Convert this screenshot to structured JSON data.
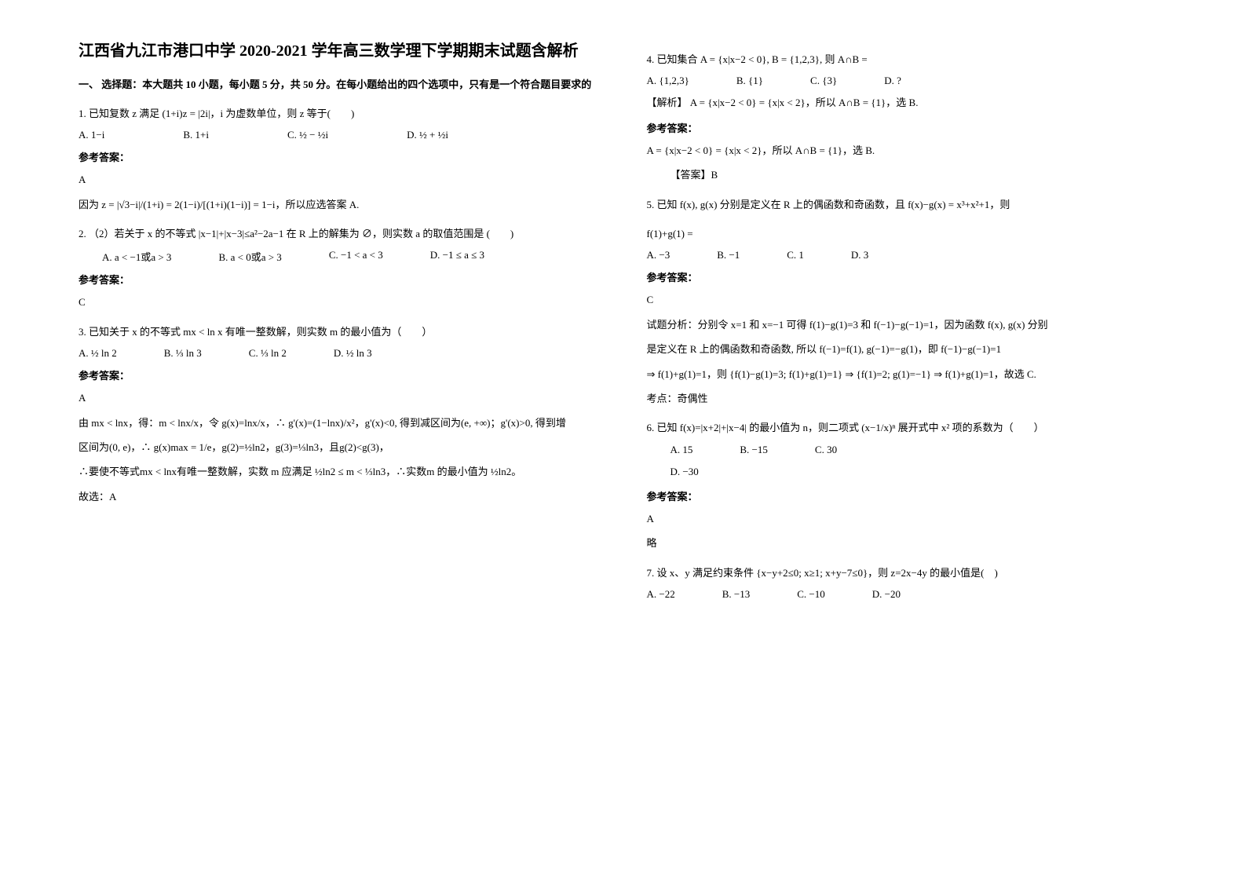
{
  "title": "江西省九江市港口中学 2020-2021 学年高三数学理下学期期末试题含解析",
  "section1_header": "一、 选择题：本大题共 10 小题，每小题 5 分，共 50 分。在每小题给出的四个选项中，只有是一个符合题目要求的",
  "q1": {
    "text": "1. 已知复数 z 满足 (1+i)z = |2i|，i 为虚数单位，则 z 等于(　　)",
    "optA": "A. 1−i",
    "optB": "B. 1+i",
    "optC": "C. ½ − ½i",
    "optD": "D. ½ + ½i",
    "answer_label": "参考答案：",
    "answer": "A",
    "explanation": "因为 z = |√3−i|/(1+i) = 2(1−i)/[(1+i)(1−i)] = 1−i，所以应选答案 A."
  },
  "q2": {
    "text": "2. （2）若关于 x 的不等式 |x−1|+|x−3|≤a²−2a−1 在 R 上的解集为 ∅，则实数 a 的取值范围是 (　　)",
    "optA": "A. a < −1或a > 3",
    "optB": "B. a < 0或a > 3",
    "optC": "C. −1 < a < 3",
    "optD": "D. −1 ≤ a ≤ 3",
    "answer_label": "参考答案：",
    "answer": "C"
  },
  "q3": {
    "text": "3. 已知关于 x 的不等式 mx < ln x 有唯一整数解，则实数 m 的最小值为（　　）",
    "optA": "A. ½ ln 2",
    "optB": "B. ⅓ ln 3",
    "optC": "C. ⅓ ln 2",
    "optD": "D. ½ ln 3",
    "answer_label": "参考答案：",
    "answer": "A",
    "explanation1": "由 mx < lnx，得：m < lnx/x，令 g(x)=lnx/x，∴ g'(x)=(1−lnx)/x²，g'(x)<0, 得到减区间为(e, +∞)；g'(x)>0, 得到增",
    "explanation2": "区间为(0, e)，∴ g(x)max = 1/e，g(2)=½ln2，g(3)=⅓ln3，且g(2)<g(3)，",
    "explanation3": "∴要使不等式mx < lnx有唯一整数解，实数 m 应满足 ½ln2 ≤ m < ⅓ln3，∴实数m 的最小值为 ½ln2。",
    "explanation4": "故选：A"
  },
  "q4": {
    "text": "4. 已知集合 A = {x|x−2 < 0}, B = {1,2,3}, 则 A∩B =",
    "optA": "A. {1,2,3}",
    "optB": "B. {1}",
    "optC": "C. {3}",
    "optD": "D. ?",
    "analysis_label": "【解析】",
    "analysis": "A = {x|x−2 < 0} = {x|x < 2}，所以 A∩B = {1}，选 B.",
    "answer_label": "参考答案：",
    "answer_line": "A = {x|x−2 < 0} = {x|x < 2}，所以 A∩B = {1}，选 B.",
    "answer_tag": "【答案】B"
  },
  "q5": {
    "text": "5. 已知 f(x), g(x) 分别是定义在 R 上的偶函数和奇函数，且 f(x)−g(x) = x³+x²+1，则",
    "text2": "f(1)+g(1) =",
    "optA": "A. −3",
    "optB": "B. −1",
    "optC": "C. 1",
    "optD": "D. 3",
    "answer_label": "参考答案：",
    "answer": "C",
    "explanation1": "试题分析：分别令 x=1 和 x=−1 可得 f(1)−g(1)=3 和 f(−1)−g(−1)=1，因为函数 f(x), g(x) 分别",
    "explanation2": "是定义在 R 上的偶函数和奇函数, 所以 f(−1)=f(1), g(−1)=−g(1)，即 f(−1)−g(−1)=1",
    "explanation3": "⇒ f(1)+g(1)=1，则 {f(1)−g(1)=3; f(1)+g(1)=1} ⇒ {f(1)=2; g(1)=−1} ⇒ f(1)+g(1)=1，故选 C.",
    "note": "考点：奇偶性"
  },
  "q6": {
    "text": "6. 已知 f(x)=|x+2|+|x−4| 的最小值为 n，则二项式 (x−1/x)ⁿ 展开式中 x² 项的系数为（　　）",
    "optA": "A. 15",
    "optB": "B. −15",
    "optC": "C. 30",
    "optD": "D. −30",
    "answer_label": "参考答案：",
    "answer": "A",
    "note": "略"
  },
  "q7": {
    "text": "7. 设 x、y 满足约束条件 {x−y+2≤0; x≥1; x+y−7≤0}，则 z=2x−4y 的最小值是(　)",
    "optA": "A. −22",
    "optB": "B. −13",
    "optC": "C. −10",
    "optD": "D. −20"
  }
}
